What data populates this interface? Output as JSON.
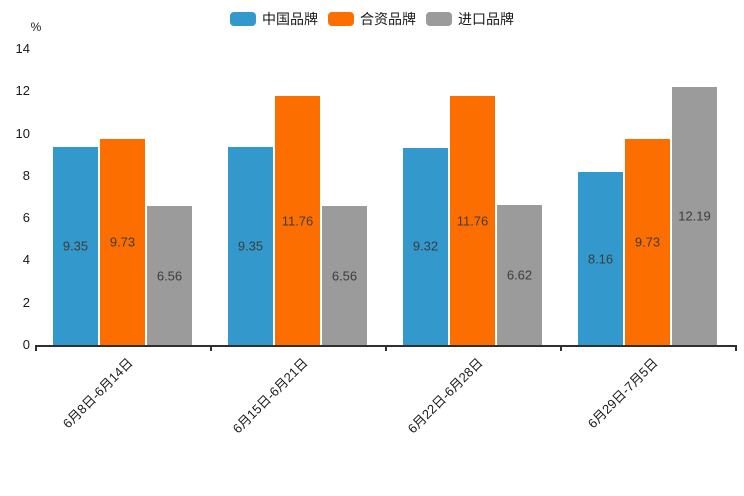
{
  "chart_data": {
    "type": "bar",
    "title": "",
    "unit_label": "%",
    "categories": [
      "6月8日-6月14日",
      "6月15日-6月21日",
      "6月22日-6月28日",
      "6月29日-7月5日"
    ],
    "series": [
      {
        "name": "中国品牌",
        "color": "#3398CC",
        "values": [
          9.35,
          9.35,
          9.32,
          8.16
        ]
      },
      {
        "name": "合资品牌",
        "color": "#FC6E00",
        "values": [
          9.73,
          11.76,
          11.76,
          9.73
        ]
      },
      {
        "name": "进口品牌",
        "color": "#9B9B9B",
        "values": [
          6.56,
          6.56,
          6.62,
          12.19
        ]
      }
    ],
    "ylim": [
      0,
      14
    ],
    "yticks": [
      0,
      2,
      4,
      6,
      8,
      10,
      12,
      14
    ],
    "legend_position": "top",
    "grid": false,
    "value_label_position": "inside-center",
    "axis_color": "#2f2f2f",
    "value_label_color": "#3d3d3d",
    "tick_label_color": "#1a1a1a"
  }
}
